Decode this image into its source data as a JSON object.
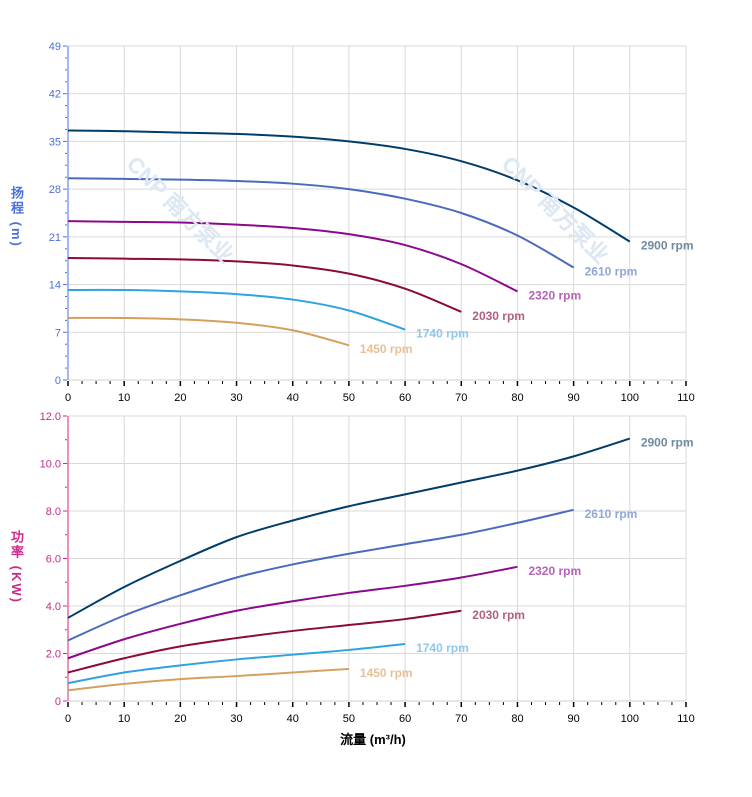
{
  "chart_data": [
    {
      "type": "line",
      "ylabel": "扬程 (m)",
      "ylabel_chars": [
        "扬",
        "程",
        "(m)"
      ],
      "ylim": [
        0,
        49
      ],
      "yticks": [
        0,
        7,
        14,
        21,
        28,
        35,
        42,
        49
      ],
      "ytick_labels": [
        "0",
        "7",
        "14",
        "21",
        "28",
        "35",
        "42",
        "49"
      ],
      "xlim": [
        0,
        110
      ],
      "xticks": [
        0,
        10,
        20,
        30,
        40,
        50,
        60,
        70,
        80,
        90,
        100,
        110
      ],
      "grid": true,
      "axis_color": "#4d6fe0",
      "series": [
        {
          "name": "2900 rpm",
          "color": "#003d6b",
          "label_color": "#6f8ba0",
          "x": [
            0,
            10,
            20,
            30,
            40,
            50,
            60,
            70,
            80,
            90,
            100
          ],
          "y": [
            36.6,
            36.5,
            36.3,
            36.1,
            35.7,
            35.0,
            33.9,
            32.1,
            29.3,
            25.3,
            20.3
          ]
        },
        {
          "name": "2610 rpm",
          "color": "#4a6bbd",
          "label_color": "#92a6d8",
          "x": [
            0,
            10,
            20,
            30,
            40,
            50,
            60,
            70,
            80,
            90
          ],
          "y": [
            29.6,
            29.5,
            29.4,
            29.2,
            28.8,
            28.0,
            26.6,
            24.5,
            21.2,
            16.5
          ]
        },
        {
          "name": "2320 rpm",
          "color": "#8b0a8b",
          "label_color": "#b565b5",
          "x": [
            0,
            10,
            20,
            30,
            40,
            50,
            60,
            70,
            80
          ],
          "y": [
            23.3,
            23.2,
            23.1,
            22.8,
            22.3,
            21.4,
            19.8,
            17.0,
            13.0
          ]
        },
        {
          "name": "2030 rpm",
          "color": "#8b0a3a",
          "label_color": "#b06080",
          "x": [
            0,
            10,
            20,
            30,
            40,
            50,
            60,
            70
          ],
          "y": [
            17.9,
            17.8,
            17.7,
            17.4,
            16.8,
            15.6,
            13.4,
            10.0
          ]
        },
        {
          "name": "1740 rpm",
          "color": "#2ea3e0",
          "label_color": "#8ec8ec",
          "x": [
            0,
            10,
            20,
            30,
            40,
            50,
            60
          ],
          "y": [
            13.2,
            13.2,
            13.0,
            12.6,
            11.8,
            10.2,
            7.4
          ]
        },
        {
          "name": "1450 rpm",
          "color": "#d4a060",
          "label_color": "#e8c098",
          "x": [
            0,
            10,
            20,
            30,
            40,
            50
          ],
          "y": [
            9.1,
            9.1,
            8.9,
            8.4,
            7.3,
            5.1
          ]
        }
      ]
    },
    {
      "type": "line",
      "ylabel": "功率 (KW)",
      "ylabel_chars": [
        "功",
        "率",
        "(KW)"
      ],
      "xlabel": "流量 (m³/h)",
      "ylim": [
        0,
        12
      ],
      "yticks": [
        0,
        2,
        4,
        6,
        8,
        10,
        12
      ],
      "ytick_labels": [
        "0",
        "2.0",
        "4.0",
        "6.0",
        "8.0",
        "10.0",
        "12.0"
      ],
      "xlim": [
        0,
        110
      ],
      "xticks": [
        0,
        10,
        20,
        30,
        40,
        50,
        60,
        70,
        80,
        90,
        100,
        110
      ],
      "grid": true,
      "axis_color": "#cc2a8a",
      "series": [
        {
          "name": "2900 rpm",
          "color": "#003d6b",
          "label_color": "#6f8ba0",
          "x": [
            0,
            10,
            20,
            30,
            40,
            50,
            60,
            70,
            80,
            90,
            100
          ],
          "y": [
            3.5,
            4.8,
            5.9,
            6.9,
            7.6,
            8.2,
            8.7,
            9.2,
            9.7,
            10.3,
            11.05
          ]
        },
        {
          "name": "2610 rpm",
          "color": "#4a6bbd",
          "label_color": "#92a6d8",
          "x": [
            0,
            10,
            20,
            30,
            40,
            50,
            60,
            70,
            80,
            90
          ],
          "y": [
            2.55,
            3.6,
            4.45,
            5.2,
            5.75,
            6.2,
            6.6,
            7.0,
            7.5,
            8.05
          ]
        },
        {
          "name": "2320 rpm",
          "color": "#8b0a8b",
          "label_color": "#b565b5",
          "x": [
            0,
            10,
            20,
            30,
            40,
            50,
            60,
            70,
            80
          ],
          "y": [
            1.8,
            2.6,
            3.25,
            3.8,
            4.2,
            4.55,
            4.85,
            5.2,
            5.65
          ]
        },
        {
          "name": "2030 rpm",
          "color": "#8b0a3a",
          "label_color": "#b06080",
          "x": [
            0,
            10,
            20,
            30,
            40,
            50,
            60,
            70
          ],
          "y": [
            1.2,
            1.8,
            2.3,
            2.65,
            2.95,
            3.2,
            3.45,
            3.8
          ]
        },
        {
          "name": "1740 rpm",
          "color": "#2ea3e0",
          "label_color": "#8ec8ec",
          "x": [
            0,
            10,
            20,
            30,
            40,
            50,
            60
          ],
          "y": [
            0.75,
            1.2,
            1.5,
            1.75,
            1.95,
            2.15,
            2.4
          ]
        },
        {
          "name": "1450 rpm",
          "color": "#d4a060",
          "label_color": "#e8c098",
          "x": [
            0,
            10,
            20,
            30,
            40,
            50
          ],
          "y": [
            0.45,
            0.72,
            0.92,
            1.05,
            1.2,
            1.35
          ]
        }
      ]
    }
  ],
  "watermark": "CNP 南方泵业"
}
